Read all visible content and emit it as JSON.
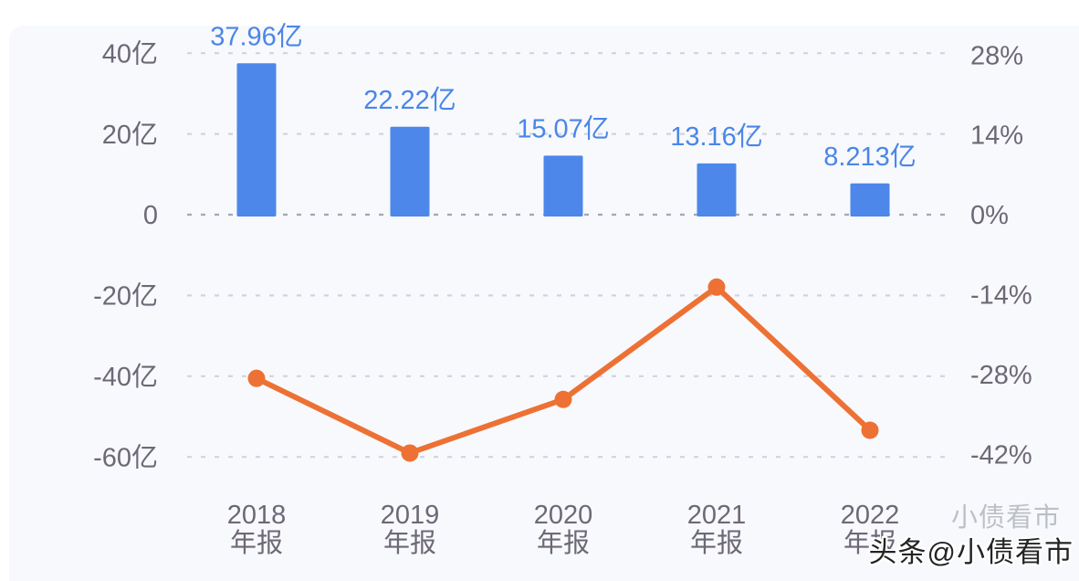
{
  "page": {
    "background": "#ffffff",
    "panel_background": "#f7f9fc"
  },
  "colors": {
    "bar": "#4d87ea",
    "bar_label": "#4a86e8",
    "line": "#ed7134",
    "axis_text": "#6e6876",
    "gridline": "#cfd4de",
    "zero_gridline": "#a2a7b2"
  },
  "watermark": {
    "main": "头条@小债看市",
    "ghost": "小债看市"
  },
  "chart_data": {
    "type": "combo (bar + line, dual axis)",
    "title": "",
    "categories_year": [
      "2018",
      "2019",
      "2020",
      "2021",
      "2022"
    ],
    "category_subtitle": "年报",
    "bars": {
      "unit": "亿",
      "values": [
        37.96,
        22.22,
        15.07,
        13.16,
        8.213
      ],
      "labels": [
        "37.96亿",
        "22.22亿",
        "15.07亿",
        "13.16亿",
        "8.213亿"
      ],
      "color": "#4d87ea"
    },
    "line": {
      "unit": "%",
      "values_pct_estimated": [
        -28.7,
        -41.8,
        -32.4,
        -12.7,
        -37.8
      ],
      "values_yi_estimated": [
        -41.0,
        -59.7,
        -46.3,
        -18.1,
        -53.9
      ],
      "color": "#ed7134"
    },
    "left_axis": {
      "unit": "亿",
      "ticks": [
        {
          "label": "40亿",
          "value": 40
        },
        {
          "label": "20亿",
          "value": 20
        },
        {
          "label": "0",
          "value": 0
        },
        {
          "label": "-20亿",
          "value": -20
        },
        {
          "label": "-40亿",
          "value": -40
        },
        {
          "label": "-60亿",
          "value": -60
        }
      ]
    },
    "right_axis": {
      "unit": "%",
      "ticks": [
        {
          "label": "28%",
          "value": 28
        },
        {
          "label": "14%",
          "value": 14
        },
        {
          "label": "0%",
          "value": 0
        },
        {
          "label": "-14%",
          "value": -14
        },
        {
          "label": "-28%",
          "value": -28
        },
        {
          "label": "-42%",
          "value": -42
        }
      ]
    },
    "grid": "horizontal dashed lines, legend none"
  }
}
